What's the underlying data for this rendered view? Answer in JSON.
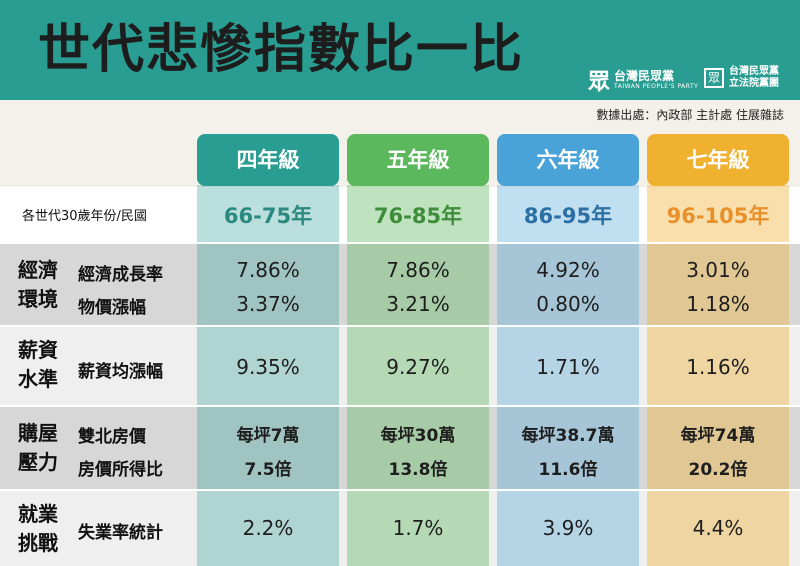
{
  "title": "世代悲慘指數比一比",
  "logos": {
    "party_mark": "眾",
    "party_name": "台灣民眾黨",
    "party_name_en": "TAIWAN PEOPLE'S PARTY",
    "caucus_mark": "眾",
    "caucus_line1": "台灣民眾黨",
    "caucus_line2": "立法院黨團"
  },
  "source": "數據出處：內政部 主計處 住展雜誌",
  "colors": {
    "header_bg": "#2a9d92",
    "gen4": "#2a9d92",
    "gen5": "#5cb85c",
    "gen6": "#4aa3d8",
    "gen7": "#f0b030",
    "gen4_year": "#2a8a80",
    "gen5_year": "#3f8c3a",
    "gen6_year": "#2b6fa3",
    "gen7_year": "#e8902a"
  },
  "row_label_30": "各世代30歲年份/民國",
  "generations": [
    {
      "name": "四年級",
      "years": "66-75年",
      "growth": "7.86%",
      "prices": "3.37%",
      "wage": "9.35%",
      "house_price": "每坪7萬",
      "ratio": "7.5倍",
      "unemp": "2.2%"
    },
    {
      "name": "五年級",
      "years": "76-85年",
      "growth": "7.86%",
      "prices": "3.21%",
      "wage": "9.27%",
      "house_price": "每坪30萬",
      "ratio": "13.8倍",
      "unemp": "1.7%"
    },
    {
      "name": "六年級",
      "years": "86-95年",
      "growth": "4.92%",
      "prices": "0.80%",
      "wage": "1.71%",
      "house_price": "每坪38.7萬",
      "ratio": "11.6倍",
      "unemp": "3.9%"
    },
    {
      "name": "七年級",
      "years": "96-105年",
      "growth": "3.01%",
      "prices": "1.18%",
      "wage": "1.16%",
      "house_price": "每坪74萬",
      "ratio": "20.2倍",
      "unemp": "4.4%"
    }
  ],
  "categories": {
    "economy_1": "經濟",
    "economy_2": "環境",
    "economy_sub1": "經濟成長率",
    "economy_sub2": "物價漲幅",
    "salary_1": "薪資",
    "salary_2": "水準",
    "salary_sub": "薪資均漲幅",
    "housing_1": "購屋",
    "housing_2": "壓力",
    "housing_sub1": "雙北房價",
    "housing_sub2": "房價所得比",
    "jobs_1": "就業",
    "jobs_2": "挑戰",
    "jobs_sub": "失業率統計"
  }
}
